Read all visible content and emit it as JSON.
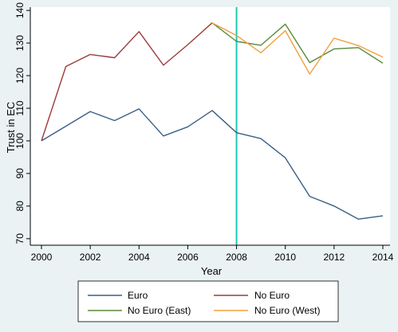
{
  "chart_data": {
    "type": "line",
    "xlabel": "Year",
    "ylabel": "Trust in EC",
    "xlim": [
      2000,
      2014
    ],
    "ylim": [
      68,
      141
    ],
    "xticks": [
      "2000",
      "2002",
      "2004",
      "2006",
      "2008",
      "2010",
      "2012",
      "2014"
    ],
    "yticks": [
      "70",
      "80",
      "90",
      "100",
      "110",
      "120",
      "130",
      "140"
    ],
    "reference_line": {
      "x": 2008,
      "color": "#1ec8b4"
    },
    "grid": false,
    "legend_position": "bottom",
    "series": [
      {
        "name": "Euro",
        "color": "#3a5f86",
        "points": [
          [
            2000,
            100
          ],
          [
            2001,
            104.5
          ],
          [
            2002,
            109
          ],
          [
            2003,
            106.2
          ],
          [
            2004,
            109.8
          ],
          [
            2005,
            101.5
          ],
          [
            2006,
            104.3
          ],
          [
            2007,
            109.3
          ],
          [
            2008,
            102.5
          ],
          [
            2009,
            100.7
          ],
          [
            2010,
            94.8
          ],
          [
            2011,
            83
          ],
          [
            2012,
            80
          ],
          [
            2013,
            76
          ],
          [
            2014,
            77
          ]
        ]
      },
      {
        "name": "No Euro",
        "color": "#9b3a3a",
        "points": [
          [
            2000,
            100
          ],
          [
            2001,
            122.8
          ],
          [
            2002,
            126.5
          ],
          [
            2003,
            125.5
          ],
          [
            2004,
            133.5
          ],
          [
            2005,
            123.2
          ],
          [
            2006,
            129.5
          ],
          [
            2007,
            136.2
          ]
        ]
      },
      {
        "name": "No Euro (East)",
        "color": "#5a8a3a",
        "points": [
          [
            2007,
            136.2
          ],
          [
            2008,
            130.5
          ],
          [
            2009,
            129.3
          ],
          [
            2010,
            135.8
          ],
          [
            2011,
            124
          ],
          [
            2012,
            128.2
          ],
          [
            2013,
            128.6
          ],
          [
            2014,
            123.8
          ]
        ]
      },
      {
        "name": "No Euro (West)",
        "color": "#f0a040",
        "points": [
          [
            2007,
            136.2
          ],
          [
            2008,
            132.3
          ],
          [
            2009,
            127
          ],
          [
            2010,
            133.8
          ],
          [
            2011,
            120.5
          ],
          [
            2012,
            131.5
          ],
          [
            2013,
            129.2
          ],
          [
            2014,
            125.7
          ]
        ]
      }
    ]
  }
}
